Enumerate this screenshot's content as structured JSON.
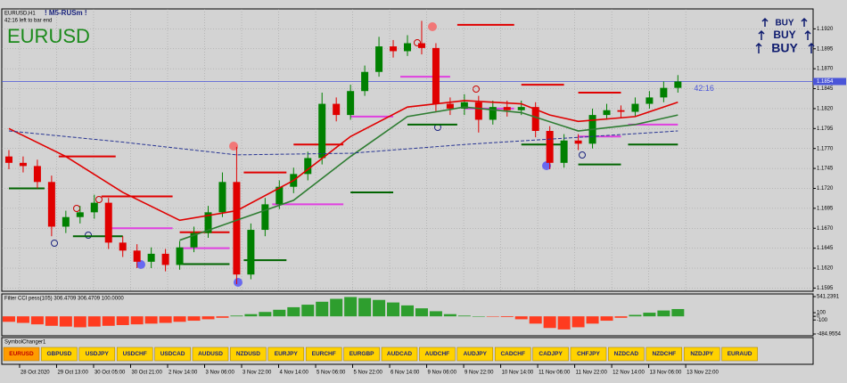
{
  "header": {
    "symbol": "EURUSD,H1",
    "indicator_name": "! M5-RUSm !",
    "timer": "42:16 left to bar end",
    "big_symbol": "EURUSD",
    "signals": [
      "BUY",
      "BUY",
      "BUY"
    ]
  },
  "chart_data": [
    {
      "type": "candlestick",
      "open": [
        1.176,
        1.1752,
        1.1748,
        1.1728,
        1.1672,
        1.1684,
        1.169,
        1.1702,
        1.1652,
        1.1642,
        1.1628,
        1.1638,
        1.1624,
        1.1646,
        1.1664,
        1.169,
        1.1728,
        1.1612,
        1.1668,
        1.17,
        1.1722,
        1.1738,
        1.1758,
        1.1826,
        1.1812,
        1.1842,
        1.1866,
        1.1898,
        1.1892,
        1.1902,
        1.1896,
        1.1826,
        1.182,
        1.1828,
        1.1806,
        1.1822,
        1.1818,
        1.1822,
        1.1792,
        1.1752,
        1.178,
        1.1776,
        1.1812,
        1.1818,
        1.1816,
        1.1826,
        1.1834,
        1.1846
      ],
      "high": [
        1.1768,
        1.176,
        1.1756,
        1.1736,
        1.1692,
        1.1698,
        1.1712,
        1.1708,
        1.166,
        1.165,
        1.1646,
        1.1644,
        1.1654,
        1.1672,
        1.1698,
        1.174,
        1.1772,
        1.1676,
        1.1708,
        1.173,
        1.1746,
        1.1766,
        1.184,
        1.1834,
        1.185,
        1.1874,
        1.191,
        1.1906,
        1.1912,
        1.193,
        1.1902,
        1.1834,
        1.1838,
        1.1836,
        1.183,
        1.183,
        1.183,
        1.1828,
        1.1798,
        1.1788,
        1.1788,
        1.182,
        1.1826,
        1.1824,
        1.1834,
        1.1842,
        1.1854,
        1.1862
      ],
      "low": [
        1.1744,
        1.174,
        1.172,
        1.166,
        1.1664,
        1.1676,
        1.1682,
        1.1644,
        1.1634,
        1.162,
        1.162,
        1.1616,
        1.1618,
        1.164,
        1.1658,
        1.1684,
        1.16,
        1.1606,
        1.166,
        1.1694,
        1.1714,
        1.173,
        1.175,
        1.1804,
        1.1806,
        1.1836,
        1.186,
        1.1884,
        1.1886,
        1.1888,
        1.1816,
        1.1812,
        1.1812,
        1.179,
        1.18,
        1.181,
        1.1812,
        1.1784,
        1.1744,
        1.1746,
        1.1768,
        1.177,
        1.1806,
        1.1808,
        1.181,
        1.182,
        1.1828,
        1.184
      ],
      "close": [
        1.1752,
        1.1748,
        1.1728,
        1.1672,
        1.1684,
        1.169,
        1.1702,
        1.1652,
        1.1642,
        1.1628,
        1.1638,
        1.1624,
        1.1646,
        1.1664,
        1.169,
        1.1728,
        1.1612,
        1.1668,
        1.17,
        1.1722,
        1.1738,
        1.1758,
        1.1826,
        1.1812,
        1.1842,
        1.1866,
        1.1898,
        1.1892,
        1.1902,
        1.1896,
        1.1826,
        1.182,
        1.1828,
        1.1806,
        1.1822,
        1.1818,
        1.1822,
        1.1792,
        1.1752,
        1.178,
        1.1776,
        1.1812,
        1.1818,
        1.1816,
        1.1826,
        1.1834,
        1.1846,
        1.1854
      ],
      "up_color": "#008000",
      "down_color": "#e00000",
      "xlim": [
        -0.5,
        56.5
      ],
      "xticks": [
        {
          "value": 0.75,
          "label": "28 Oct 2020"
        },
        {
          "value": 3.35,
          "label": "29 Oct 13:00"
        },
        {
          "value": 5.95,
          "label": "30 Oct 05:00"
        },
        {
          "value": 8.55,
          "label": "30 Oct 21:00"
        },
        {
          "value": 11.15,
          "label": "2 Nov 14:00"
        },
        {
          "value": 13.75,
          "label": "3 Nov 06:00"
        },
        {
          "value": 16.35,
          "label": "3 Nov 22:00"
        },
        {
          "value": 18.95,
          "label": "4 Nov 14:00"
        },
        {
          "value": 21.55,
          "label": "5 Nov 06:00"
        },
        {
          "value": 24.15,
          "label": "5 Nov 22:00"
        },
        {
          "value": 26.75,
          "label": "6 Nov 14:00"
        },
        {
          "value": 29.35,
          "label": "9 Nov 06:00"
        },
        {
          "value": 31.95,
          "label": "9 Nov 22:00"
        },
        {
          "value": 34.55,
          "label": "10 Nov 14:00"
        },
        {
          "value": 37.15,
          "label": "11 Nov 06:00"
        },
        {
          "value": 39.75,
          "label": "11 Nov 22:00"
        },
        {
          "value": 42.35,
          "label": "12 Nov 14:00"
        },
        {
          "value": 44.95,
          "label": "13 Nov 06:00"
        },
        {
          "value": 47.55,
          "label": "13 Nov 22:00"
        }
      ],
      "ylim": [
        1.1591,
        1.1945
      ],
      "yticks": [
        {
          "value": 1.192,
          "label": "1.1920"
        },
        1.1895,
        {
          "value": 1.187,
          "label": "1.1870"
        },
        1.1845,
        {
          "value": 1.182,
          "label": "1.1820"
        },
        1.1795,
        {
          "value": 1.177,
          "label": "1.1770"
        },
        1.1745,
        {
          "value": 1.172,
          "label": "1.1720"
        },
        1.1695,
        {
          "value": 1.167,
          "label": "1.1670"
        },
        1.1645,
        {
          "value": 1.162,
          "label": "1.1620"
        },
        1.1595
      ],
      "grid": true,
      "current_price": 1.1854,
      "current_price_color": "#4a55d8",
      "timer_label": "42:16",
      "lines": [
        {
          "color": "#e00000",
          "dashed": false,
          "x": [
            0,
            4,
            8,
            12,
            16,
            20,
            24,
            28,
            32,
            36,
            38,
            40,
            44,
            47
          ],
          "values": [
            1.1795,
            1.176,
            1.1715,
            1.168,
            1.1692,
            1.173,
            1.1785,
            1.1822,
            1.183,
            1.1826,
            1.1812,
            1.1804,
            1.181,
            1.1828
          ]
        },
        {
          "color": "#2e7d32",
          "dashed": false,
          "x": [
            12,
            16,
            20,
            24,
            28,
            32,
            36,
            40,
            44,
            47
          ],
          "values": [
            1.1655,
            1.168,
            1.1705,
            1.176,
            1.181,
            1.1822,
            1.1815,
            1.1792,
            1.18,
            1.1812
          ]
        },
        {
          "color": "#283593",
          "dashed": true,
          "x": [
            0,
            8,
            16,
            24,
            32,
            40,
            47
          ],
          "values": [
            1.1792,
            1.1778,
            1.1762,
            1.1764,
            1.1775,
            1.1784,
            1.1792
          ]
        }
      ],
      "levels": [
        {
          "x": [
            3.5,
            7.5
          ],
          "value": 1.176,
          "color": "#e00000"
        },
        {
          "x": [
            0,
            2.5
          ],
          "value": 1.172,
          "color": "#006400"
        },
        {
          "x": [
            4.5,
            8
          ],
          "value": 1.166,
          "color": "#006400"
        },
        {
          "x": [
            6.5,
            11.5
          ],
          "value": 1.171,
          "color": "#e00000"
        },
        {
          "x": [
            7,
            11.5
          ],
          "value": 1.167,
          "color": "#e040e0"
        },
        {
          "x": [
            12,
            15.5
          ],
          "value": 1.1625,
          "color": "#006400"
        },
        {
          "x": [
            12,
            15.5
          ],
          "value": 1.1665,
          "color": "#e00000"
        },
        {
          "x": [
            12,
            15.5
          ],
          "value": 1.1645,
          "color": "#e040e0"
        },
        {
          "x": [
            16.5,
            19.5
          ],
          "value": 1.174,
          "color": "#e00000"
        },
        {
          "x": [
            16.5,
            19.5
          ],
          "value": 1.163,
          "color": "#006400"
        },
        {
          "x": [
            18.5,
            23.5
          ],
          "value": 1.17,
          "color": "#e040e0"
        },
        {
          "x": [
            20,
            23.5
          ],
          "value": 1.1775,
          "color": "#e00000"
        },
        {
          "x": [
            24,
            27
          ],
          "value": 1.1715,
          "color": "#006400"
        },
        {
          "x": [
            24,
            27
          ],
          "value": 1.181,
          "color": "#e040e0"
        },
        {
          "x": [
            27.5,
            31
          ],
          "value": 1.186,
          "color": "#e040e0"
        },
        {
          "x": [
            28,
            31.5
          ],
          "value": 1.18,
          "color": "#006400"
        },
        {
          "x": [
            31.5,
            35.5
          ],
          "value": 1.1925,
          "color": "#e00000"
        },
        {
          "x": [
            32,
            35.5
          ],
          "value": 1.182,
          "color": "#e040e0"
        },
        {
          "x": [
            36,
            39
          ],
          "value": 1.185,
          "color": "#e00000"
        },
        {
          "x": [
            36,
            39
          ],
          "value": 1.1775,
          "color": "#006400"
        },
        {
          "x": [
            40,
            43
          ],
          "value": 1.184,
          "color": "#e00000"
        },
        {
          "x": [
            40,
            43
          ],
          "value": 1.1785,
          "color": "#e040e0"
        },
        {
          "x": [
            40,
            43
          ],
          "value": 1.175,
          "color": "#006400"
        },
        {
          "x": [
            43.5,
            47
          ],
          "value": 1.1775,
          "color": "#006400"
        },
        {
          "x": [
            43.5,
            47
          ],
          "value": 1.18,
          "color": "#e040e0"
        }
      ]
    },
    {
      "type": "bar",
      "title": "Filter CCI  pess(105)  306.4709 306.4709 100.0000",
      "values": [
        -150,
        -180,
        -220,
        -260,
        -280,
        -300,
        -280,
        -260,
        -240,
        -220,
        -200,
        -180,
        -150,
        -120,
        -80,
        -40,
        20,
        60,
        120,
        180,
        250,
        320,
        400,
        480,
        530,
        500,
        450,
        380,
        300,
        220,
        140,
        60,
        20,
        0,
        -10,
        -20,
        -80,
        -200,
        -320,
        -360,
        -300,
        -200,
        -120,
        -40,
        40,
        100,
        160,
        200
      ],
      "up_color": "#2e9e2e",
      "down_color": "#ff3b1f",
      "xlim": [
        -0.5,
        56.5
      ],
      "ylim": [
        -484.9554,
        541.2391
      ],
      "yticks": [
        541.2391,
        100,
        0,
        -100,
        -484.9554
      ]
    }
  ],
  "symbol_changer": {
    "title": "SymbolChanger1",
    "buttons": [
      "EURUSD",
      "GBPUSD",
      "USDJPY",
      "USDCHF",
      "USDCAD",
      "AUDUSD",
      "NZDUSD",
      "EURJPY",
      "EURCHF",
      "EURGBP",
      "AUDCAD",
      "AUDCHF",
      "AUDJPY",
      "CADCHF",
      "CADJPY",
      "CHFJPY",
      "NZDCAD",
      "NZDCHF",
      "NZDJPY",
      "EURAUD"
    ],
    "selected": 0,
    "color": "#ffd200",
    "selected_color": "#ff9c00"
  }
}
